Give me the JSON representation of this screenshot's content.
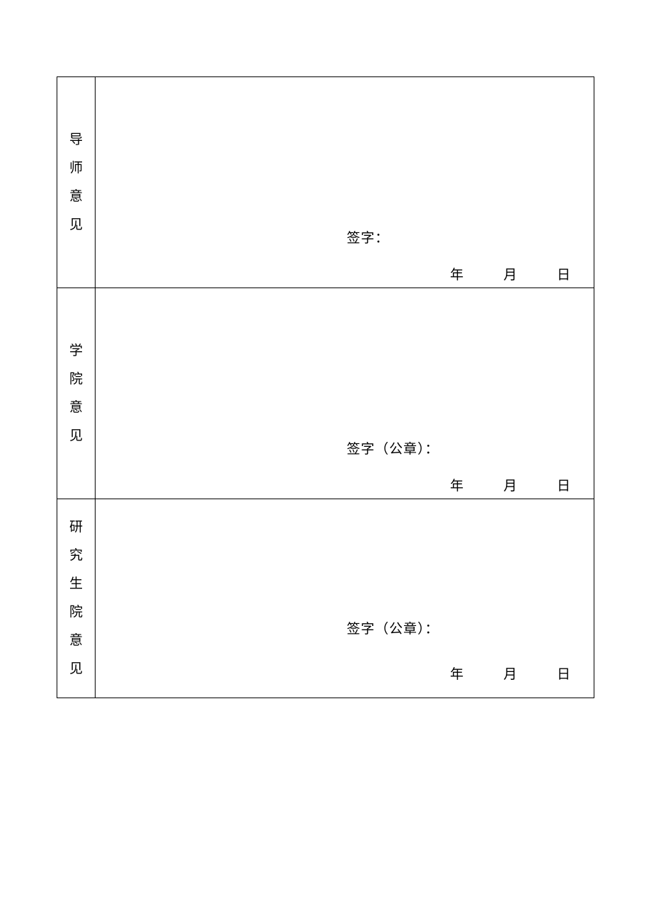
{
  "rows": [
    {
      "label_chars": [
        "导",
        "师",
        "意",
        "见"
      ],
      "signature_label": "签字：",
      "date_year": "年",
      "date_month": "月",
      "date_day": "日"
    },
    {
      "label_chars": [
        "学",
        "院",
        "意",
        "见"
      ],
      "signature_label": "签字（公章）：",
      "date_year": "年",
      "date_month": "月",
      "date_day": "日"
    },
    {
      "label_chars": [
        "研",
        "究",
        "生",
        "院",
        "意",
        "见"
      ],
      "signature_label": "签字（公章）：",
      "date_year": "年",
      "date_month": "月",
      "date_day": "日"
    }
  ],
  "colors": {
    "background": "#ffffff",
    "border": "#000000",
    "text": "#000000"
  },
  "typography": {
    "font_family": "SimSun",
    "label_fontsize": 19,
    "content_fontsize": 19
  }
}
